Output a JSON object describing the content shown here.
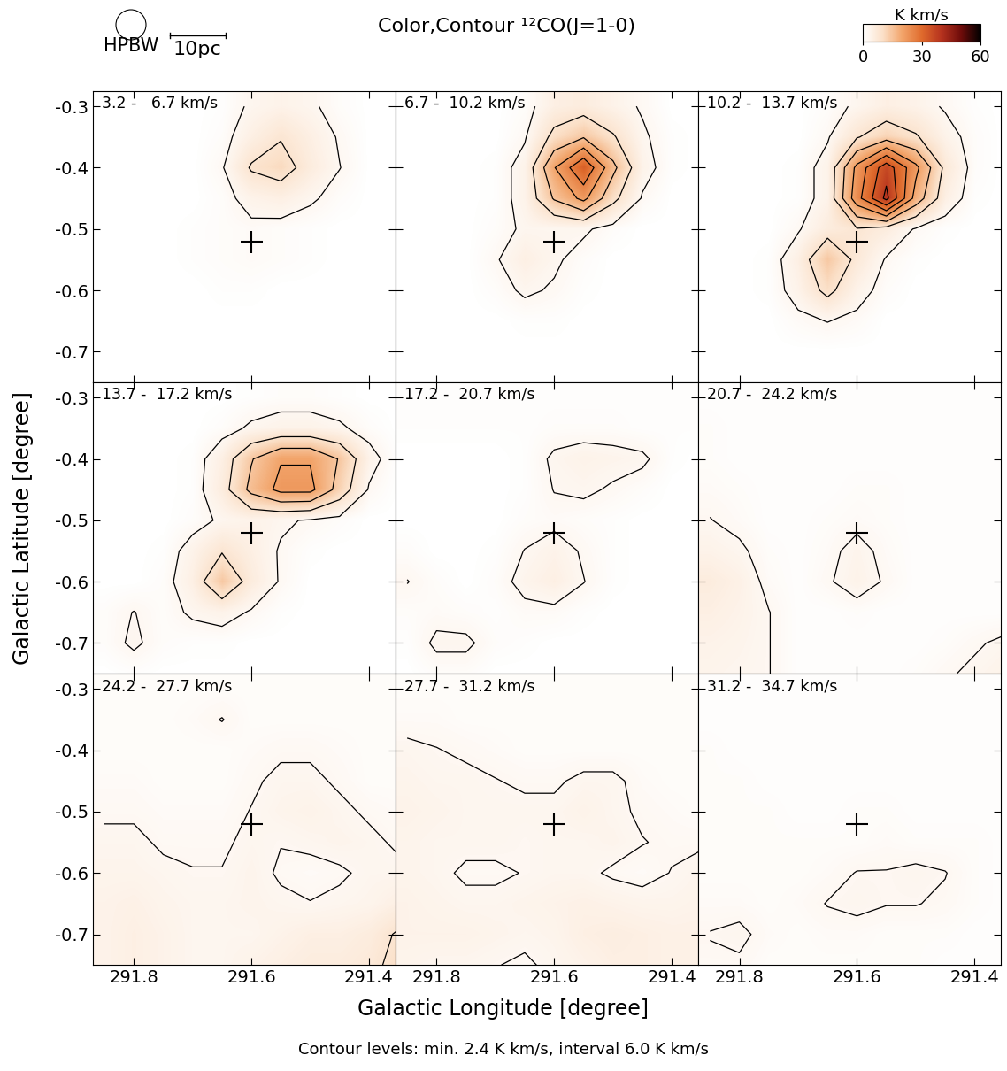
{
  "chart_data": {
    "type": "channel_map",
    "title": "Color,Contour ¹²CO(J=1-0)",
    "x_label": "Galactic Longitude [degree]",
    "y_label": "Galactic Latitude [degree]",
    "caption": "Contour levels: min. 2.4 K km/s, interval 6.0 K km/s",
    "beam_label": "HPBW",
    "scale_label": "10pc",
    "xlim": [
      291.87,
      291.355
    ],
    "ylim": [
      -0.75,
      -0.275
    ],
    "xticks": [
      291.8,
      291.6,
      291.4
    ],
    "yticks": [
      -0.3,
      -0.4,
      -0.5,
      -0.6,
      -0.7
    ],
    "marker": "+",
    "cross": {
      "lon": 291.6,
      "lat": -0.52
    },
    "contour_min": 2.4,
    "contour_interval": 6.0,
    "colorbar_range": [
      0,
      60
    ],
    "colorbar_ticks": [
      0,
      30,
      60
    ],
    "colorbar_label": "K km/s",
    "lon": [
      291.85,
      291.8,
      291.75,
      291.7,
      291.65,
      291.6,
      291.55,
      291.5,
      291.45,
      291.4,
      291.35
    ],
    "lat": [
      -0.3,
      -0.35,
      -0.4,
      -0.45,
      -0.5,
      -0.55,
      -0.6,
      -0.65,
      -0.7,
      -0.75
    ],
    "panels": [
      {
        "label": "3.2 -   6.7 km/s",
        "cells": [
          [
            0,
            0,
            0,
            0,
            0.5,
            3,
            4,
            3,
            1,
            0,
            0
          ],
          [
            0,
            0,
            0,
            0,
            1,
            5,
            8,
            5,
            2,
            0,
            0
          ],
          [
            0,
            0,
            0,
            0,
            2,
            9,
            11,
            6,
            2.5,
            0,
            0
          ],
          [
            0,
            0,
            0,
            0,
            1,
            4,
            5,
            3,
            1,
            0,
            0
          ],
          [
            0,
            0,
            0,
            0.5,
            1,
            1.5,
            1,
            0.5,
            0,
            0,
            0
          ],
          [
            0,
            0,
            0,
            0.5,
            1,
            1.5,
            1,
            0.5,
            0,
            0,
            0
          ],
          [
            0,
            0,
            0,
            0,
            0.5,
            0.5,
            0,
            0,
            0,
            0,
            0
          ],
          [
            0,
            0,
            0,
            0,
            0,
            0,
            0,
            0,
            0,
            0,
            0
          ],
          [
            0,
            0,
            0,
            0,
            0,
            0,
            0,
            0,
            0,
            0,
            0
          ],
          [
            0,
            0,
            0,
            0,
            0,
            0,
            0,
            0,
            0,
            0,
            0
          ]
        ]
      },
      {
        "label": "6.7 -  10.2 km/s",
        "cells": [
          [
            0,
            0,
            0,
            0,
            1,
            5,
            6,
            4,
            2,
            0,
            0
          ],
          [
            0,
            0,
            0,
            0,
            2,
            10,
            14,
            9,
            3,
            0.5,
            0
          ],
          [
            0,
            0,
            0,
            0.5,
            4,
            20,
            32,
            16,
            4,
            0.5,
            0
          ],
          [
            0,
            0,
            0,
            0.5,
            4,
            15,
            22,
            10,
            2,
            0,
            0
          ],
          [
            0,
            0,
            0,
            1,
            3,
            3,
            3,
            1,
            0,
            0,
            0
          ],
          [
            0,
            0,
            0,
            2,
            5,
            3,
            1,
            0,
            0,
            0,
            0
          ],
          [
            0,
            0,
            0,
            1,
            3,
            2,
            0.5,
            0,
            0,
            0,
            0
          ],
          [
            0,
            0,
            0,
            0,
            0.5,
            0.5,
            0,
            0,
            0,
            0,
            0
          ],
          [
            0,
            0,
            0,
            0,
            0,
            0,
            0,
            0,
            0,
            0,
            0
          ],
          [
            0,
            0,
            0,
            0,
            0,
            0,
            0,
            0,
            0,
            0,
            0
          ]
        ]
      },
      {
        "label": "10.2 -  13.7 km/s",
        "cells": [
          [
            0,
            0,
            0,
            0,
            1,
            3,
            5,
            4,
            2,
            0.5,
            0
          ],
          [
            0,
            0,
            0,
            0,
            2,
            8,
            12,
            9,
            4,
            1,
            0
          ],
          [
            0,
            0,
            0,
            0.5,
            4,
            22,
            36,
            22,
            7,
            1,
            0
          ],
          [
            0,
            0,
            0,
            0.5,
            4,
            24,
            40,
            18,
            5,
            0.5,
            0
          ],
          [
            0,
            0,
            0,
            2,
            6,
            8,
            6,
            2,
            0.5,
            0,
            0
          ],
          [
            0,
            0,
            0.5,
            5,
            14,
            7,
            2,
            0.5,
            0,
            0,
            0
          ],
          [
            0,
            0,
            0.5,
            4,
            10,
            4,
            1,
            0,
            0,
            0,
            0
          ],
          [
            0,
            0,
            0,
            1.5,
            2.5,
            1.5,
            0,
            0,
            0,
            0,
            0
          ],
          [
            0,
            0,
            0,
            0,
            0,
            0,
            0,
            0,
            0,
            0,
            0
          ],
          [
            0,
            0,
            0,
            0,
            0,
            0,
            0,
            0,
            0,
            0,
            0
          ]
        ]
      },
      {
        "label": "13.7 -  17.2 km/s",
        "cells": [
          [
            0,
            0,
            0,
            0,
            0,
            0.5,
            1,
            1,
            0.5,
            0,
            0
          ],
          [
            0,
            0,
            0,
            0,
            1,
            3,
            4,
            4,
            3,
            1,
            0
          ],
          [
            0,
            0,
            0,
            0.5,
            5,
            14,
            20,
            20,
            14,
            4,
            0
          ],
          [
            0,
            0,
            0,
            0.5,
            6,
            16,
            22,
            22,
            12,
            2,
            0
          ],
          [
            0,
            0,
            0,
            1,
            3,
            4,
            3,
            2,
            1,
            0,
            0
          ],
          [
            0,
            0,
            0.5,
            4,
            8,
            5,
            2,
            0.5,
            0,
            0,
            0
          ],
          [
            0,
            0,
            1,
            5,
            14,
            6,
            2,
            0,
            0,
            0,
            0
          ],
          [
            1,
            2.5,
            1,
            3,
            4,
            2,
            0.5,
            0,
            0,
            0,
            0
          ],
          [
            1,
            3,
            1,
            0.5,
            0.5,
            0,
            0,
            0,
            0,
            0,
            0
          ],
          [
            0,
            0.5,
            0,
            0,
            0,
            0,
            0,
            0,
            0,
            0,
            0
          ]
        ]
      },
      {
        "label": "17.2 -  20.7 km/s",
        "cells": [
          [
            0.5,
            0.5,
            0.5,
            0.5,
            0.5,
            0.5,
            0.5,
            0.5,
            0.5,
            0.5,
            0.5
          ],
          [
            0.5,
            0.5,
            0.5,
            0.5,
            0.5,
            1,
            1,
            1,
            0.5,
            0.5,
            0.5
          ],
          [
            0,
            0,
            0,
            0,
            0.5,
            3,
            4,
            3.5,
            3,
            0.5,
            0
          ],
          [
            0,
            0,
            0,
            0,
            0.5,
            2.5,
            3,
            2,
            1,
            0,
            0
          ],
          [
            0,
            0,
            0,
            0,
            1,
            1.5,
            1,
            0.5,
            0,
            0,
            0
          ],
          [
            1,
            0,
            0,
            0.5,
            2.5,
            4,
            2,
            0.5,
            0,
            0,
            0
          ],
          [
            2.5,
            1,
            0,
            1,
            3.5,
            5,
            2.5,
            0.5,
            0,
            0,
            0
          ],
          [
            1,
            1.5,
            1,
            0.5,
            1.5,
            1.5,
            0.5,
            0,
            0,
            0,
            0
          ],
          [
            0.5,
            3,
            3,
            1,
            0.5,
            0,
            0,
            0,
            0,
            0,
            0
          ],
          [
            0,
            1,
            1,
            0,
            0,
            0,
            0,
            0,
            0,
            0,
            0
          ]
        ]
      },
      {
        "label": "20.7 -  24.2 km/s",
        "cells": [
          [
            0.5,
            0.5,
            0.5,
            0.5,
            0.5,
            0.5,
            0.5,
            0.5,
            0.5,
            0.5,
            0.5
          ],
          [
            1,
            0.5,
            0.5,
            0.5,
            0.5,
            0.5,
            0.5,
            0.5,
            0.5,
            0.5,
            0.5
          ],
          [
            1,
            0.5,
            0.5,
            0.5,
            0.5,
            0.5,
            0.5,
            0.5,
            0.5,
            0.5,
            0.5
          ],
          [
            1.5,
            1,
            0.5,
            0.5,
            0.5,
            1,
            1,
            0.5,
            0.5,
            0.5,
            0.5
          ],
          [
            2.5,
            1.5,
            0.5,
            0.5,
            1,
            1.5,
            1,
            0.5,
            0.5,
            0.5,
            0.5
          ],
          [
            4,
            3,
            1,
            0.5,
            1.5,
            3.5,
            1.5,
            0.5,
            0.5,
            0.5,
            0.5
          ],
          [
            6,
            4.5,
            1.5,
            0.5,
            2,
            4,
            2,
            0.5,
            0.5,
            0.5,
            0.5
          ],
          [
            5,
            4,
            2.5,
            0.5,
            0.5,
            1,
            0.5,
            0.5,
            0.5,
            0.5,
            0.5
          ],
          [
            4,
            3.5,
            2.5,
            0.5,
            0.5,
            0.5,
            0.5,
            0.5,
            1,
            2,
            3
          ],
          [
            3.5,
            3,
            2.5,
            0.5,
            0.5,
            0.5,
            0.5,
            1,
            2,
            3,
            4
          ]
        ]
      },
      {
        "label": "24.2 -  27.7 km/s",
        "cells": [
          [
            1,
            1,
            1,
            1,
            1,
            1,
            1,
            1,
            1,
            1,
            1
          ],
          [
            1,
            1,
            1,
            1.5,
            2.5,
            1,
            1,
            1,
            1,
            1,
            1
          ],
          [
            1,
            1,
            1,
            1,
            1,
            1.5,
            2,
            2,
            1.5,
            1,
            1
          ],
          [
            1.5,
            1.5,
            1,
            1,
            1,
            2,
            3,
            3,
            2,
            1,
            1
          ],
          [
            2,
            2,
            1.5,
            1.5,
            1.5,
            2.5,
            3.5,
            4,
            3,
            2,
            1.5
          ],
          [
            3,
            3,
            2,
            2,
            2,
            3,
            2.5,
            3,
            3.5,
            3,
            2
          ],
          [
            3.5,
            3.5,
            3,
            2.5,
            2.5,
            3.5,
            2,
            1.5,
            2,
            3,
            3
          ],
          [
            4,
            4.5,
            3.5,
            3,
            3,
            3.5,
            3,
            2.5,
            3,
            3.5,
            5
          ],
          [
            4,
            5,
            4,
            3,
            3,
            3,
            4,
            5,
            5,
            6,
            9
          ],
          [
            4,
            5,
            4,
            3,
            3,
            4,
            5,
            6,
            6,
            7,
            10
          ]
        ]
      },
      {
        "label": "27.7 -  31.2 km/s",
        "cells": [
          [
            1,
            1,
            1,
            1,
            1,
            1,
            1,
            1,
            1,
            1,
            1
          ],
          [
            1.5,
            1.5,
            1,
            1,
            1,
            1,
            1,
            1,
            1,
            1,
            1
          ],
          [
            3,
            2.5,
            2,
            1.5,
            1,
            1,
            1,
            1,
            1,
            1,
            1
          ],
          [
            3.5,
            3,
            3,
            2.5,
            2,
            2,
            3,
            3,
            1.5,
            1,
            1
          ],
          [
            4,
            3.5,
            3,
            3,
            3,
            3,
            4,
            3,
            2,
            1.5,
            1
          ],
          [
            3.5,
            3,
            3,
            3,
            2.5,
            3,
            3,
            3.5,
            2.5,
            2,
            2
          ],
          [
            3.5,
            3,
            2,
            2,
            2.5,
            3,
            3,
            2,
            1.5,
            2.5,
            3.5
          ],
          [
            4,
            3.5,
            3,
            3,
            3.5,
            4,
            4.5,
            4,
            3.5,
            3.5,
            4
          ],
          [
            4,
            4,
            4,
            3.5,
            3,
            3.5,
            5,
            5.5,
            5,
            4.5,
            4.5
          ],
          [
            3.5,
            3,
            3,
            2.5,
            2,
            3,
            4,
            5,
            5,
            4.5,
            4.5
          ]
        ]
      },
      {
        "label": "31.2 -  34.7 km/s",
        "cells": [
          [
            0.5,
            0.5,
            0.5,
            0.5,
            0.5,
            0.5,
            0.5,
            0.5,
            0.5,
            0.5,
            0.5
          ],
          [
            0.5,
            0.5,
            0.5,
            0.5,
            0.5,
            0.5,
            0.5,
            0.5,
            0.5,
            0.5,
            0.5
          ],
          [
            1,
            0.5,
            0.5,
            0.5,
            0.5,
            0.5,
            0.5,
            0.5,
            0.5,
            0.5,
            0.5
          ],
          [
            1,
            1,
            0.5,
            0.5,
            0.5,
            0.5,
            0.5,
            0.5,
            0.5,
            0.5,
            0.5
          ],
          [
            1,
            1,
            1,
            0.5,
            0.5,
            1,
            1,
            0.5,
            0.5,
            0.5,
            0.5
          ],
          [
            1,
            1,
            1,
            1,
            1,
            1,
            1.5,
            1,
            1,
            1,
            0.5
          ],
          [
            1,
            1,
            1,
            1,
            1.5,
            2.5,
            2.5,
            3,
            2.5,
            1,
            0.5
          ],
          [
            1.5,
            1.5,
            1,
            1.5,
            2.5,
            3,
            2.5,
            2.5,
            2,
            1,
            0.5
          ],
          [
            2.5,
            3,
            1.5,
            1,
            1.5,
            1.5,
            1,
            1,
            1,
            0.5,
            0.5
          ],
          [
            2,
            2,
            1,
            1,
            1,
            1,
            1,
            1,
            0.5,
            0.5,
            0.5
          ]
        ]
      }
    ]
  }
}
